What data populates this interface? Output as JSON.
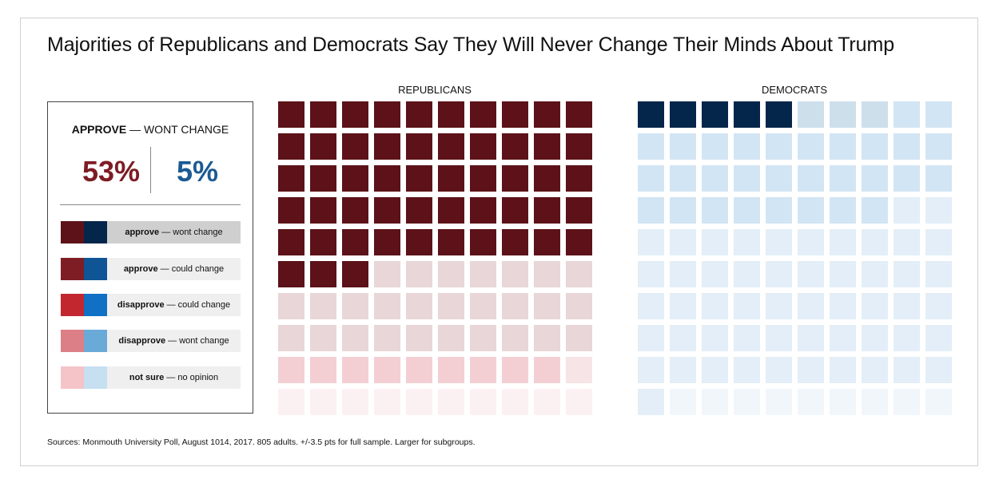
{
  "title": "Majorities of Republicans and Democrats Say They Will Never Change Their Minds About Trump",
  "source_note": "Sources: Monmouth University Poll, August 1014, 2017. 805 adults. +/-3.5 pts for full sample. Larger for subgroups.",
  "legend": {
    "headline_bold": "APPROVE",
    "headline_rest": " — WONT CHANGE",
    "rep_value": "53%",
    "dem_value": "5%",
    "items": [
      {
        "bold": "approve",
        "rest": " — wont change",
        "rep_color": "#5c1218",
        "dem_color": "#04264a",
        "active": true
      },
      {
        "bold": "approve",
        "rest": " — could change",
        "rep_color": "#7f1d24",
        "dem_color": "#0f5595",
        "active": false
      },
      {
        "bold": "disapprove",
        "rest": " — could change",
        "rep_color": "#c22730",
        "dem_color": "#0f70c4",
        "active": false
      },
      {
        "bold": "disapprove",
        "rest": " — wont change",
        "rep_color": "#dc7f86",
        "dem_color": "#6aaad8",
        "active": false
      },
      {
        "bold": "not sure",
        "rest": " — no opinion",
        "rep_color": "#f4c4c8",
        "dem_color": "#c6dff1",
        "active": false
      }
    ]
  },
  "chart_data": [
    {
      "type": "waffle",
      "title": "REPUBLICANS",
      "grid": "10x10",
      "highlighted_category": "approve — wont change",
      "categories": [
        "approve — wont change",
        "approve — could change",
        "disapprove — could change",
        "disapprove — wont change",
        "not sure — no opinion"
      ],
      "values": [
        53,
        27,
        9,
        1,
        10
      ],
      "colors": [
        "#5c1218",
        "#e9d6d8",
        "#f3cfd3",
        "#f7e4e6",
        "#fcf1f2"
      ]
    },
    {
      "type": "waffle",
      "title": "DEMOCRATS",
      "grid": "10x10",
      "highlighted_category": "approve — wont change",
      "categories": [
        "approve — wont change",
        "approve — could change",
        "disapprove — could change",
        "disapprove — wont change",
        "not sure — no opinion"
      ],
      "values": [
        5,
        3,
        30,
        53,
        9
      ],
      "colors": [
        "#04264a",
        "#cddfeb",
        "#d2e5f4",
        "#e3eef8",
        "#f1f6fb"
      ]
    }
  ]
}
